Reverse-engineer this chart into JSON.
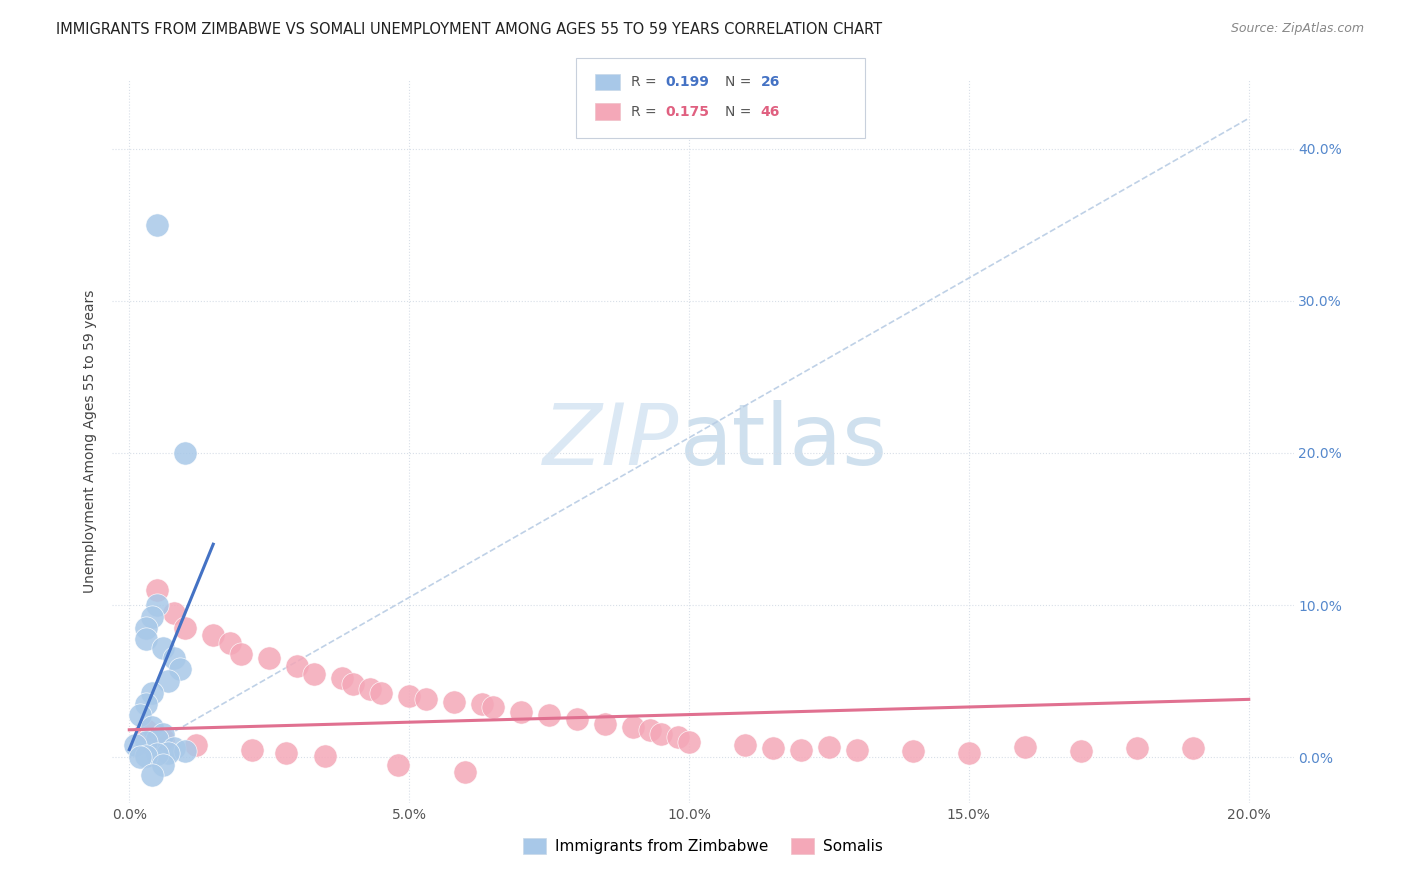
{
  "title": "IMMIGRANTS FROM ZIMBABWE VS SOMALI UNEMPLOYMENT AMONG AGES 55 TO 59 YEARS CORRELATION CHART",
  "source": "Source: ZipAtlas.com",
  "xlabel_ticks": [
    "0.0%",
    "5.0%",
    "10.0%",
    "15.0%",
    "20.0%"
  ],
  "xlabel_vals": [
    0.0,
    0.05,
    0.1,
    0.15,
    0.2
  ],
  "ylabel_ticks": [
    "0.0%",
    "10.0%",
    "20.0%",
    "30.0%",
    "40.0%"
  ],
  "ylabel_vals": [
    0.0,
    0.1,
    0.2,
    0.3,
    0.4
  ],
  "ylabel_label": "Unemployment Among Ages 55 to 59 years",
  "xlim": [
    -0.003,
    0.208
  ],
  "ylim": [
    -0.03,
    0.445
  ],
  "legend1_label": "Immigrants from Zimbabwe",
  "legend2_label": "Somalis",
  "R1": "0.199",
  "N1": "26",
  "R2": "0.175",
  "N2": "46",
  "color1": "#a8c8e8",
  "color1_line": "#4472c4",
  "color2": "#f4a8b8",
  "color2_line": "#e07090",
  "ref_line_color": "#b8cce4",
  "grid_color": "#d8dfe8",
  "zim_x": [
    0.005,
    0.01,
    0.005,
    0.004,
    0.003,
    0.003,
    0.006,
    0.008,
    0.009,
    0.007,
    0.004,
    0.003,
    0.002,
    0.004,
    0.006,
    0.005,
    0.003,
    0.001,
    0.008,
    0.01,
    0.007,
    0.005,
    0.003,
    0.002,
    0.006,
    0.004
  ],
  "zim_y": [
    0.35,
    0.2,
    0.1,
    0.092,
    0.085,
    0.078,
    0.072,
    0.065,
    0.058,
    0.05,
    0.042,
    0.035,
    0.028,
    0.02,
    0.015,
    0.012,
    0.01,
    0.008,
    0.006,
    0.004,
    0.003,
    0.002,
    0.001,
    0.0,
    -0.005,
    -0.012
  ],
  "som_x": [
    0.005,
    0.008,
    0.01,
    0.015,
    0.018,
    0.02,
    0.025,
    0.03,
    0.033,
    0.038,
    0.04,
    0.043,
    0.045,
    0.05,
    0.053,
    0.058,
    0.063,
    0.065,
    0.07,
    0.075,
    0.08,
    0.085,
    0.09,
    0.093,
    0.095,
    0.098,
    0.1,
    0.11,
    0.115,
    0.12,
    0.125,
    0.13,
    0.14,
    0.15,
    0.16,
    0.17,
    0.18,
    0.19,
    0.003,
    0.006,
    0.012,
    0.022,
    0.028,
    0.035,
    0.048,
    0.06
  ],
  "som_y": [
    0.11,
    0.095,
    0.085,
    0.08,
    0.075,
    0.068,
    0.065,
    0.06,
    0.055,
    0.052,
    0.048,
    0.045,
    0.042,
    0.04,
    0.038,
    0.036,
    0.035,
    0.033,
    0.03,
    0.028,
    0.025,
    0.022,
    0.02,
    0.018,
    0.015,
    0.013,
    0.01,
    0.008,
    0.006,
    0.005,
    0.007,
    0.005,
    0.004,
    0.003,
    0.007,
    0.004,
    0.006,
    0.006,
    0.018,
    0.012,
    0.008,
    0.005,
    0.003,
    0.001,
    -0.005,
    -0.01
  ]
}
